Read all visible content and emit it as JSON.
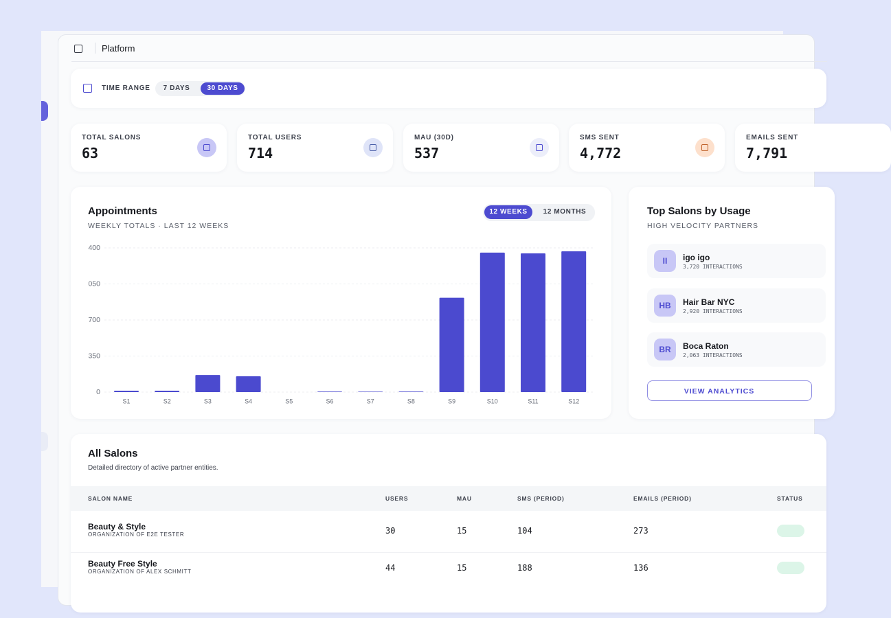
{
  "header": {
    "title": "Platform"
  },
  "time_range": {
    "label": "TIME RANGE",
    "options": [
      "7 DAYS",
      "30 DAYS"
    ]
  },
  "stats": [
    {
      "label": "TOTAL SALONS",
      "value": "63"
    },
    {
      "label": "TOTAL USERS",
      "value": "714"
    },
    {
      "label": "MAU (30D)",
      "value": "537"
    },
    {
      "label": "SMS SENT",
      "value": "4,772"
    },
    {
      "label": "EMAILS SENT",
      "value": "7,791"
    }
  ],
  "chart_data": {
    "type": "bar",
    "title": "Appointments",
    "subtitle": "WEEKLY TOTALS · LAST 12 WEEKS",
    "toggle": [
      "12 WEEKS",
      "12 MONTHS"
    ],
    "categories": [
      "S1",
      "S2",
      "S3",
      "S4",
      "S5",
      "S6",
      "S7",
      "S8",
      "S9",
      "S10",
      "S11",
      "S12"
    ],
    "values": [
      13,
      13,
      166,
      153,
      0,
      5,
      4,
      5,
      916,
      1354,
      1347,
      1367
    ],
    "color": "#4b4acf",
    "ylim": [
      0,
      1400
    ],
    "yticks": [
      0,
      350,
      700,
      {
        "value": 1050,
        "label": "050"
      },
      {
        "value": 1400,
        "label": "400"
      }
    ],
    "grid": true
  },
  "top_salons": {
    "title": "Top Salons by Usage",
    "subtitle": "HIGH VELOCITY PARTNERS",
    "items": [
      {
        "initials": "II",
        "name": "igo igo",
        "detail": "3,720 INTERACTIONS"
      },
      {
        "initials": "HB",
        "name": "Hair Bar NYC",
        "detail": "2,920 INTERACTIONS"
      },
      {
        "initials": "BR",
        "name": "Boca Raton",
        "detail": "2,063 INTERACTIONS"
      }
    ],
    "button": "VIEW ANALYTICS"
  },
  "table": {
    "title": "All Salons",
    "subtitle": "Detailed directory of active partner entities.",
    "columns": [
      "SALON NAME",
      "USERS",
      "MAU",
      "SMS (PERIOD)",
      "EMAILS (PERIOD)",
      "STATUS"
    ],
    "rows": [
      {
        "name": "Beauty & Style",
        "org": "ORGANIZATION OF E2E TESTER",
        "cells": [
          "30",
          "15",
          "104",
          "273"
        ]
      },
      {
        "name": "Beauty Free Style",
        "org": "ORGANIZATION OF ALEX SCHMITT",
        "cells": [
          "44",
          "15",
          "188",
          "136"
        ]
      }
    ]
  }
}
